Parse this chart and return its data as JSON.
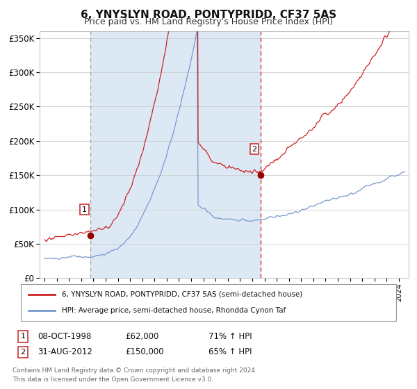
{
  "title": "6, YNYSLYN ROAD, PONTYPRIDD, CF37 5AS",
  "subtitle": "Price paid vs. HM Land Registry's House Price Index (HPI)",
  "title_fontsize": 11,
  "subtitle_fontsize": 9,
  "legend_line1": "6, YNYSLYN ROAD, PONTYPRIDD, CF37 5AS (semi-detached house)",
  "legend_line2": "HPI: Average price, semi-detached house, Rhondda Cynon Taf",
  "hpi_color": "#7799cc",
  "price_color": "#cc2222",
  "marker_color": "#990000",
  "vline1_color": "#aaaaaa",
  "vline2_color": "#dd3333",
  "shade_color": "#dde8f5",
  "point1_x": 1998.78,
  "point1_y": 62000,
  "point2_x": 2012.67,
  "point2_y": 150000,
  "xmin": 1994.6,
  "xmax": 2024.8,
  "ymin": 0,
  "ymax": 360000,
  "yticks": [
    0,
    50000,
    100000,
    150000,
    200000,
    250000,
    300000,
    350000
  ],
  "ytick_labels": [
    "£0",
    "£50K",
    "£100K",
    "£150K",
    "£200K",
    "£250K",
    "£300K",
    "£350K"
  ],
  "footer1": "Contains HM Land Registry data © Crown copyright and database right 2024.",
  "footer2": "This data is licensed under the Open Government Licence v3.0."
}
